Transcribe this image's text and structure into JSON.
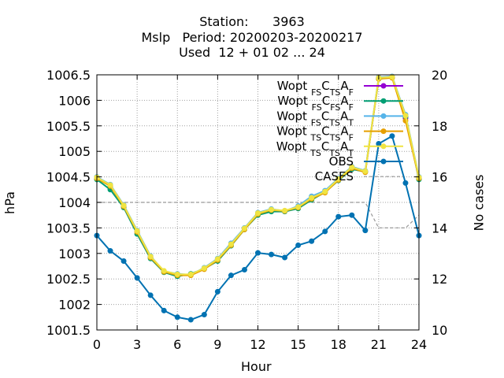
{
  "title_lines": [
    "Station:      3963",
    "Mslp   Period: 20200203-20200217",
    "Used  12 + 01 02 ... 24"
  ],
  "xlabel": "Hour",
  "ylabel": "hPa",
  "y2label": "No cases",
  "colors": {
    "wopt_fs_cts_af": "#9400d3",
    "wopt_fs_cfs_af": "#009e73",
    "wopt_fs_cts_at": "#56b4e9",
    "wopt_ts_cts_af": "#e69f00",
    "wopt_ts_cts_at": "#f0e442",
    "obs": "#0072b2",
    "cases": "#999999"
  },
  "chart_data": {
    "type": "line",
    "x": [
      0,
      1,
      2,
      3,
      4,
      5,
      6,
      7,
      8,
      9,
      10,
      11,
      12,
      13,
      14,
      15,
      16,
      17,
      18,
      19,
      20,
      21,
      22,
      23,
      24
    ],
    "xlim": [
      0,
      24
    ],
    "xticks": [
      "0",
      "3",
      "6",
      "9",
      "12",
      "15",
      "18",
      "21",
      "24"
    ],
    "ylim": [
      1001.5,
      1006.5
    ],
    "yticks": [
      "1001.5",
      "1002",
      "1002.5",
      "1003",
      "1003.5",
      "1004",
      "1004.5",
      "1005",
      "1005.5",
      "1006",
      "1006.5"
    ],
    "y2lim": [
      10,
      20
    ],
    "y2ticks": [
      "10",
      "12",
      "14",
      "16",
      "18",
      "20"
    ],
    "grid": true,
    "legend_position": "top-right",
    "series": [
      {
        "name": "Wopt FS CTS AF",
        "key": "wopt_fs_cts_af",
        "axis": "y",
        "values": [
          1004.48,
          1004.33,
          1003.93,
          1003.43,
          1002.93,
          1002.65,
          1002.58,
          1002.58,
          1002.7,
          1002.88,
          1003.17,
          1003.48,
          1003.78,
          1003.85,
          1003.83,
          1003.9,
          1004.08,
          1004.2,
          1004.45,
          1004.68,
          1004.6,
          1006.43,
          1006.45,
          1005.65,
          1004.48
        ]
      },
      {
        "name": "Wopt FS CFS AF",
        "key": "wopt_fs_cfs_af",
        "axis": "y",
        "values": [
          1004.45,
          1004.25,
          1003.9,
          1003.38,
          1002.9,
          1002.63,
          1002.55,
          1002.6,
          1002.7,
          1002.85,
          1003.15,
          1003.47,
          1003.75,
          1003.82,
          1003.82,
          1003.88,
          1004.05,
          1004.2,
          1004.43,
          1004.65,
          1004.6,
          1006.42,
          1006.45,
          1005.68,
          1004.45
        ]
      },
      {
        "name": "Wopt FS CTS AT",
        "key": "wopt_fs_cts_at",
        "axis": "y",
        "values": [
          1004.5,
          1004.35,
          1003.95,
          1003.45,
          1002.95,
          1002.65,
          1002.6,
          1002.58,
          1002.72,
          1002.9,
          1003.2,
          1003.5,
          1003.8,
          1003.87,
          1003.83,
          1003.93,
          1004.12,
          1004.23,
          1004.47,
          1004.7,
          1004.62,
          1006.45,
          1006.47,
          1005.72,
          1004.5
        ]
      },
      {
        "name": "Wopt TS CTS AF",
        "key": "wopt_ts_cts_af",
        "axis": "y",
        "values": [
          1004.47,
          1004.32,
          1003.92,
          1003.42,
          1002.92,
          1002.64,
          1002.57,
          1002.57,
          1002.69,
          1002.87,
          1003.16,
          1003.47,
          1003.77,
          1003.85,
          1003.83,
          1003.9,
          1004.07,
          1004.19,
          1004.44,
          1004.67,
          1004.59,
          1006.42,
          1006.44,
          1005.6,
          1004.47
        ]
      },
      {
        "name": "Wopt TS CTS AT",
        "key": "wopt_ts_cts_at",
        "axis": "y",
        "values": [
          1004.49,
          1004.34,
          1003.94,
          1003.44,
          1002.94,
          1002.66,
          1002.59,
          1002.59,
          1002.71,
          1002.89,
          1003.18,
          1003.49,
          1003.79,
          1003.86,
          1003.84,
          1003.91,
          1004.09,
          1004.21,
          1004.46,
          1004.69,
          1004.61,
          1006.44,
          1006.46,
          1005.7,
          1004.49
        ]
      },
      {
        "name": "OBS",
        "key": "obs",
        "axis": "y",
        "values": [
          1003.35,
          1003.05,
          1002.85,
          1002.52,
          1002.18,
          1001.88,
          1001.75,
          1001.7,
          1001.8,
          1002.25,
          1002.57,
          1002.68,
          1003.01,
          1002.98,
          1002.92,
          1003.16,
          1003.24,
          1003.43,
          1003.72,
          1003.75,
          1003.45,
          1005.15,
          1005.3,
          1004.38,
          1003.35
        ]
      },
      {
        "name": "CASES",
        "key": "cases",
        "axis": "y2",
        "dashed": true,
        "values": [
          15,
          15,
          15,
          15,
          15,
          15,
          15,
          15,
          15,
          15,
          15,
          15,
          15,
          15,
          15,
          15,
          15,
          15,
          15,
          15,
          15,
          14,
          14,
          14,
          14.5
        ]
      }
    ]
  }
}
